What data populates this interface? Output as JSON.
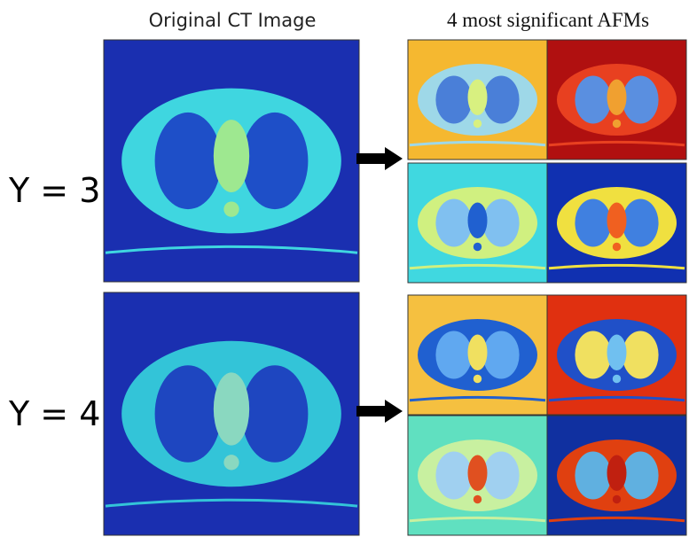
{
  "header": {
    "left_title": "Original CT Image",
    "right_title": "4 most significant AFMs"
  },
  "rows": [
    {
      "label": "Y = 3"
    },
    {
      "label": "Y = 4"
    }
  ]
}
